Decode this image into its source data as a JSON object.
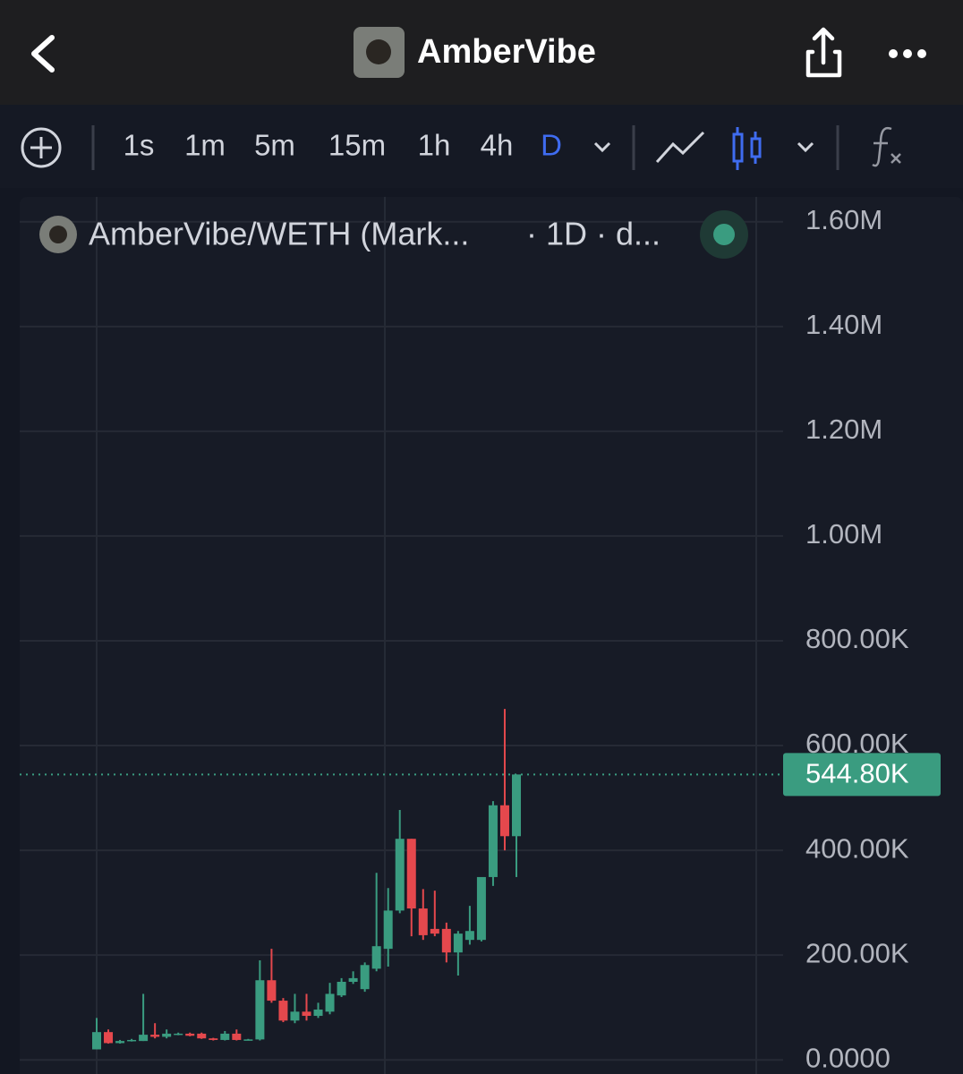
{
  "header": {
    "title": "AmberVibe"
  },
  "toolbar": {
    "intervals": [
      "1s",
      "1m",
      "5m",
      "15m",
      "1h",
      "4h",
      "D"
    ]
  },
  "chart_data": {
    "type": "candlestick",
    "title": "AmberVibe/WETH (Mark...",
    "subtitle": "· 1D · d...",
    "up_color": "#3a9c80",
    "down_color": "#e5484d",
    "open": [
      20000,
      53000,
      32000,
      36000,
      36000,
      48000,
      44000,
      48000,
      50000,
      50000,
      41000,
      38000,
      50000,
      38000,
      39000,
      152000,
      113000,
      75000,
      92000,
      84000,
      92000,
      123000,
      149000,
      135000,
      174000,
      212000,
      285000,
      422000,
      289000,
      250000,
      250000,
      205000,
      229000,
      229000,
      349000,
      486000,
      427000
    ],
    "high": [
      80000,
      58000,
      38000,
      40000,
      126000,
      70000,
      58000,
      52000,
      52000,
      52000,
      42000,
      55000,
      58000,
      40000,
      190000,
      212000,
      118000,
      126000,
      126000,
      109000,
      147000,
      156000,
      169000,
      186000,
      357000,
      328000,
      477000,
      422000,
      326000,
      323000,
      262000,
      246000,
      294000,
      349000,
      494000,
      670000,
      544800
    ],
    "low": [
      20000,
      31000,
      31000,
      35000,
      36000,
      41000,
      41000,
      47000,
      45000,
      40000,
      37000,
      37000,
      37000,
      37000,
      37000,
      109000,
      72000,
      70000,
      75000,
      80000,
      87000,
      120000,
      145000,
      130000,
      169000,
      178000,
      280000,
      236000,
      229000,
      236000,
      186000,
      161000,
      220000,
      226000,
      332000,
      400000,
      349000
    ],
    "close": [
      53000,
      32000,
      36000,
      38000,
      48000,
      44000,
      50000,
      50000,
      46000,
      41000,
      38000,
      50000,
      38000,
      39000,
      152000,
      113000,
      75000,
      92000,
      84000,
      96000,
      126000,
      149000,
      156000,
      181000,
      217000,
      285000,
      422000,
      289000,
      238000,
      241000,
      205000,
      241000,
      246000,
      349000,
      486000,
      427000,
      544800
    ],
    "ylim": [
      -27000,
      1656000
    ],
    "yticks": [
      {
        "value": 0,
        "label": "0.0000"
      },
      {
        "value": 200000,
        "label": "200.00K"
      },
      {
        "value": 400000,
        "label": "400.00K"
      },
      {
        "value": 600000,
        "label": "600.00K"
      },
      {
        "value": 800000,
        "label": "800.00K"
      },
      {
        "value": 1000000,
        "label": "1.00M"
      },
      {
        "value": 1200000,
        "label": "1.20M"
      },
      {
        "value": 1400000,
        "label": "1.40M"
      },
      {
        "value": 1600000,
        "label": "1.60M"
      }
    ],
    "grid": true,
    "last_price": {
      "value": 544800,
      "label": "544.80K"
    }
  }
}
